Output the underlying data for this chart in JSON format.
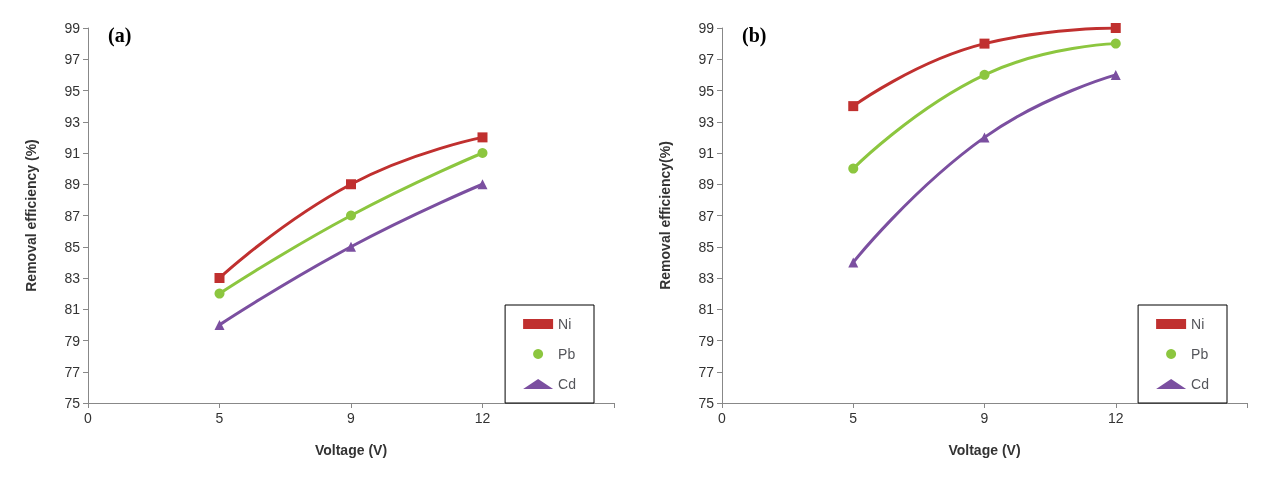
{
  "chart_data": [
    {
      "type": "line",
      "title": "(a)",
      "xlabel": "Voltage (V)",
      "ylabel": "Removal efficiency (%)",
      "categories": [
        "0",
        "5",
        "9",
        "12",
        null
      ],
      "ylim": [
        75,
        99
      ],
      "yticks": [
        75,
        77,
        79,
        81,
        83,
        85,
        87,
        89,
        91,
        93,
        95,
        97,
        99
      ],
      "grid": false,
      "legend": "bottom right",
      "series": [
        {
          "name": "Ni",
          "color": "#c0302f",
          "marker": "square",
          "values": [
            null,
            83,
            89,
            92,
            null
          ]
        },
        {
          "name": "Pb",
          "color": "#8cc63f",
          "marker": "circle",
          "values": [
            null,
            82,
            87,
            91,
            null
          ]
        },
        {
          "name": "Cd",
          "color": "#7b4fa0",
          "marker": "triangle",
          "values": [
            null,
            80,
            85,
            89,
            null
          ]
        }
      ]
    },
    {
      "type": "line",
      "title": "(b)",
      "xlabel": "Voltage (V)",
      "ylabel": "Removal efficiency(%)",
      "categories": [
        "0",
        "5",
        "9",
        "12",
        null
      ],
      "ylim": [
        75,
        99
      ],
      "yticks": [
        75,
        77,
        79,
        81,
        83,
        85,
        87,
        89,
        91,
        93,
        95,
        97,
        99
      ],
      "grid": false,
      "legend": "bottom right",
      "series": [
        {
          "name": "Ni",
          "color": "#c0302f",
          "marker": "square",
          "values": [
            null,
            94,
            98,
            99,
            null
          ]
        },
        {
          "name": "Pb",
          "color": "#8cc63f",
          "marker": "circle",
          "values": [
            null,
            90,
            96,
            98,
            null
          ]
        },
        {
          "name": "Cd",
          "color": "#7b4fa0",
          "marker": "triangle",
          "values": [
            null,
            84,
            92,
            96,
            null
          ]
        }
      ]
    }
  ]
}
